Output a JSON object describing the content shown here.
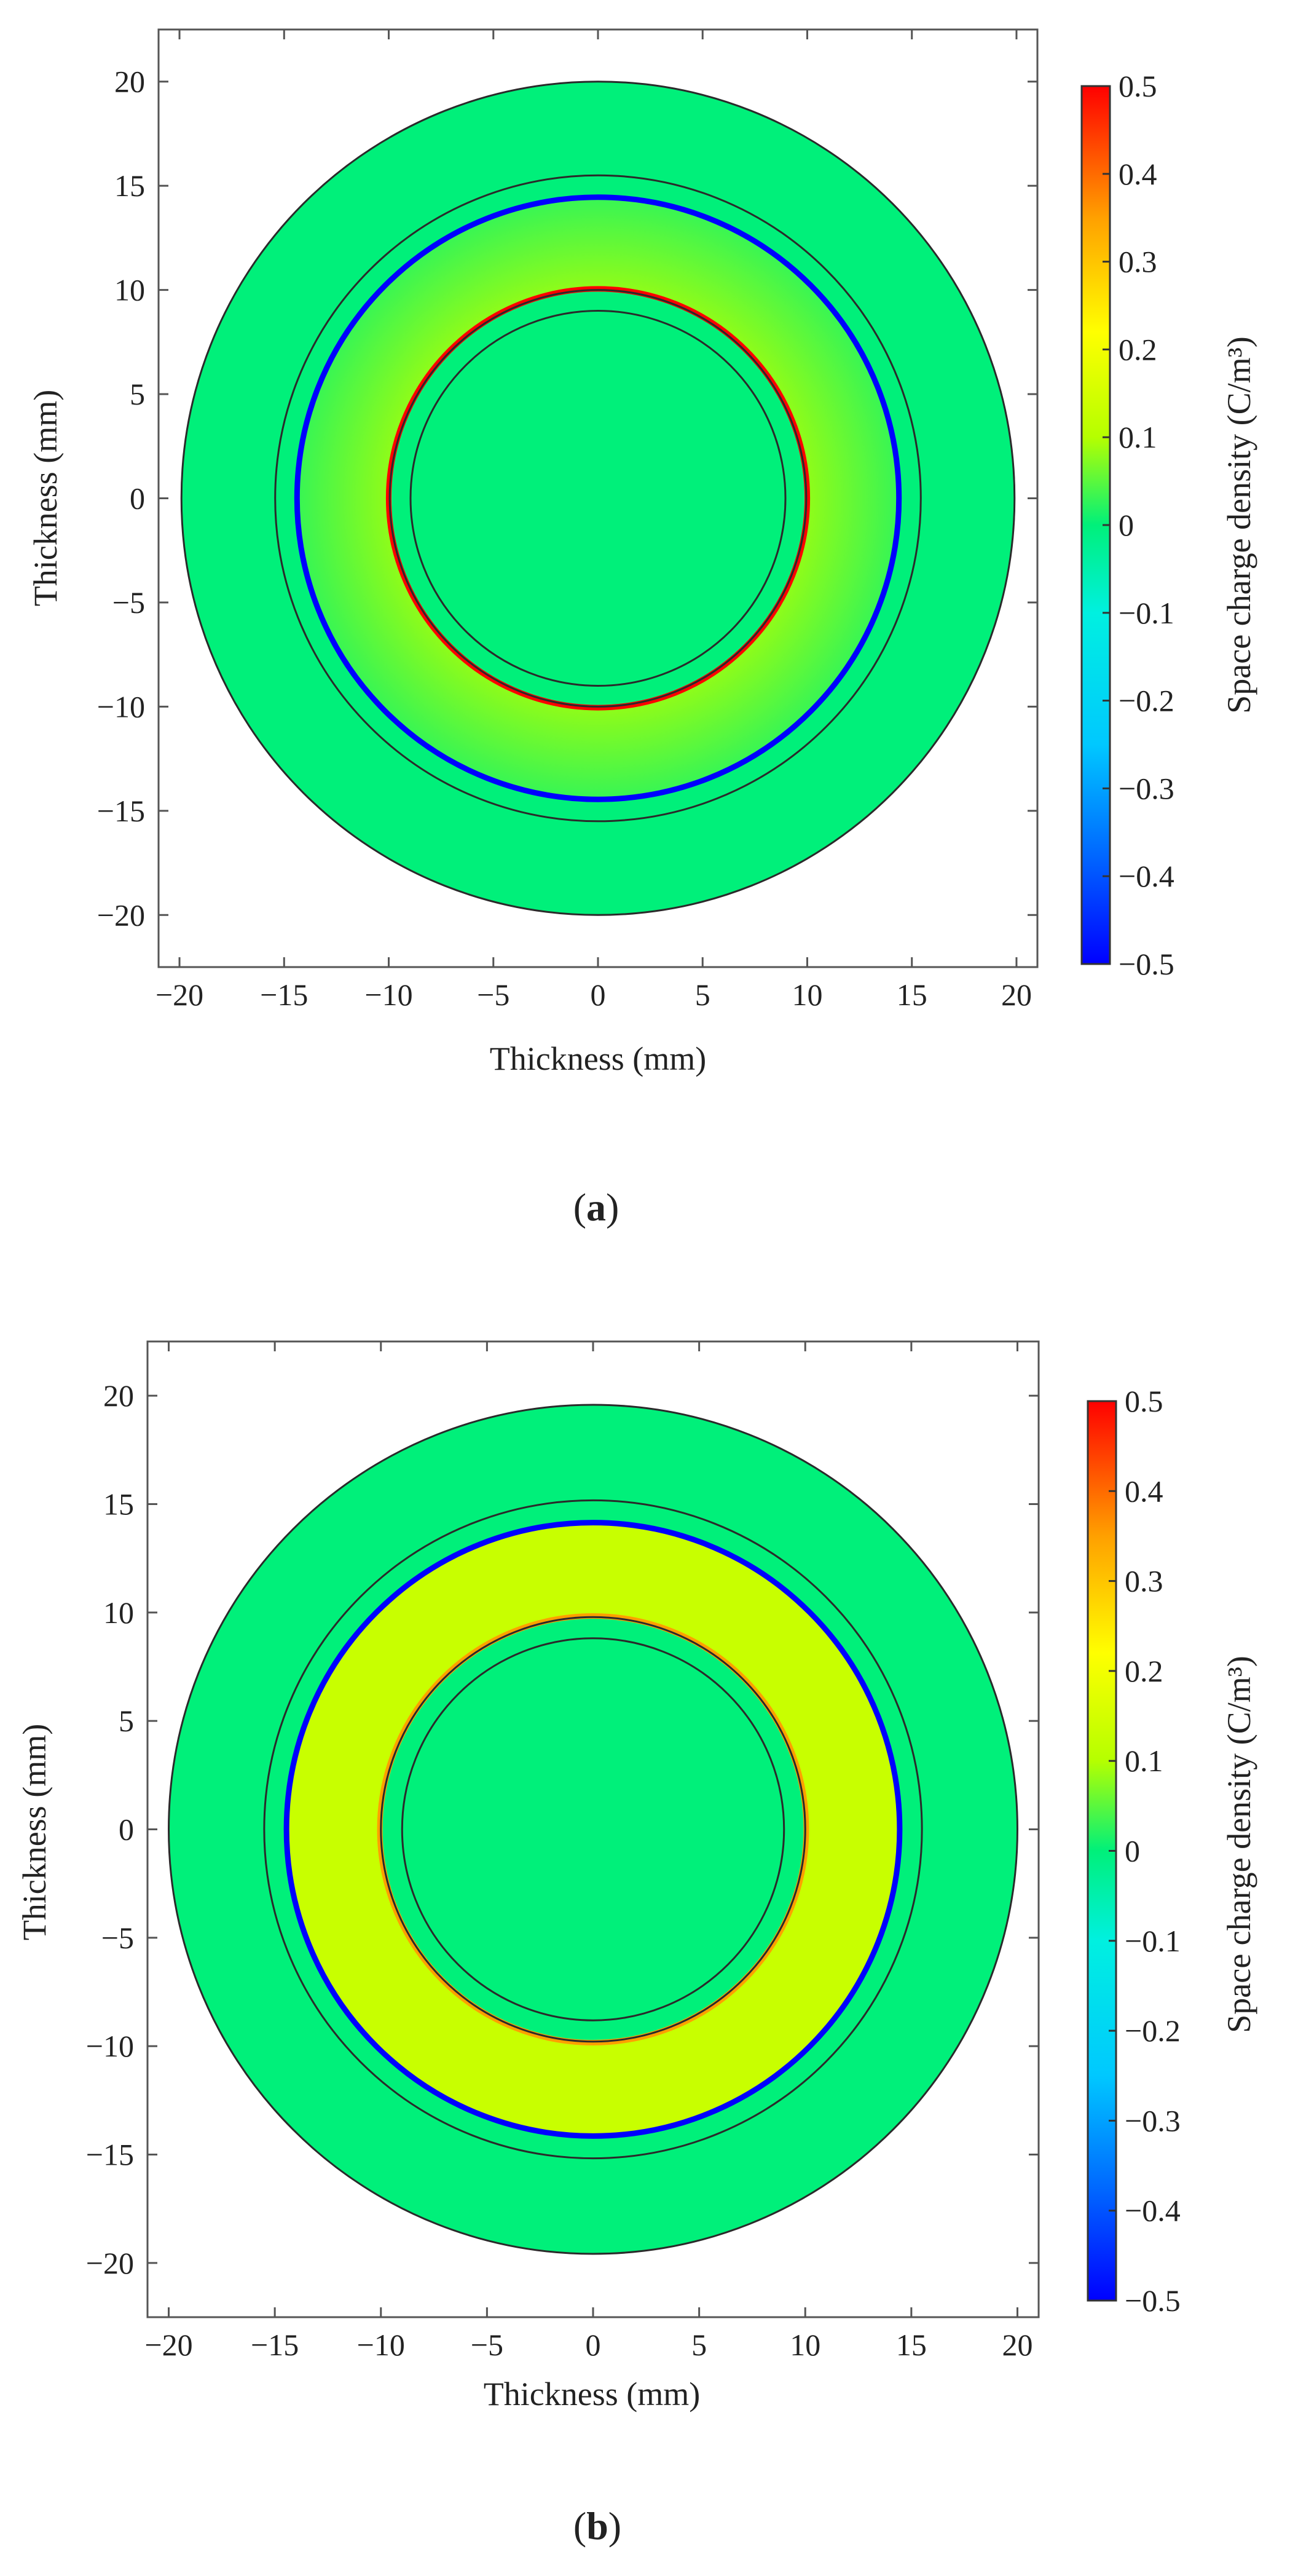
{
  "colors": {
    "field_bg": "#00f07a",
    "cmap": [
      "#0000ff",
      "#00a0ff",
      "#00f0ff",
      "#00f07a",
      "#b5ff00",
      "#ffff00",
      "#ffa000",
      "#ff3000",
      "#ff0000"
    ],
    "frame": "#555555",
    "ring_line": "#2a2a2a"
  },
  "chart_data": [
    {
      "id": "a",
      "type": "heatmap",
      "caption_letter": "a",
      "xlabel": "Thickness (mm)",
      "ylabel": "Thickness (mm)",
      "colorbar_label": "Space charge density (C/m³)",
      "xlim": [
        -21,
        21
      ],
      "ylim": [
        -22.5,
        22.5
      ],
      "xticks": [
        -20,
        -15,
        -10,
        -5,
        0,
        5,
        10,
        15,
        20
      ],
      "xtick_labels": [
        "−20",
        "−15",
        "−10",
        "−5",
        "0",
        "5",
        "10",
        "15",
        "20"
      ],
      "yticks": [
        20,
        15,
        10,
        5,
        0,
        -5,
        -10,
        -15,
        -20
      ],
      "ytick_labels": [
        "20",
        "15",
        "10",
        "5",
        "0",
        "−5",
        "−10",
        "−15",
        "−20"
      ],
      "colorbar_range": [
        -0.5,
        0.5
      ],
      "colorbar_ticks": [
        0.5,
        0.4,
        0.3,
        0.2,
        0.1,
        0,
        -0.1,
        -0.2,
        -0.3,
        -0.4,
        -0.5
      ],
      "colorbar_tick_labels": [
        "0.5",
        "0.4",
        "0.3",
        "0.2",
        "0.1",
        "0",
        "−0.1",
        "−0.2",
        "−0.3",
        "−0.4",
        "−0.5"
      ],
      "regions": [
        {
          "r_outer": 20,
          "r_inner": 15.5,
          "density": 0.0
        },
        {
          "r_outer": 15.5,
          "r_inner": 14.5,
          "density": 0.0
        },
        {
          "r_outer": 14.5,
          "r_inner": 10,
          "density": 0.05,
          "density_inner": 0.08,
          "density_outer": 0.03
        },
        {
          "r_outer": 10,
          "r_inner": 9,
          "density": 0.0
        },
        {
          "r_outer": 9,
          "r_inner": 0,
          "density": 0.0
        }
      ],
      "interface_charges": [
        {
          "r": 14.45,
          "density": -0.5
        },
        {
          "r": 10.05,
          "density": 0.5
        }
      ],
      "boundary_circles": [
        20,
        15.5,
        10,
        9
      ]
    },
    {
      "id": "b",
      "type": "heatmap",
      "caption_letter": "b",
      "xlabel": "Thickness (mm)",
      "ylabel": "Thickness (mm)",
      "colorbar_label": "Space charge density (C/m³)",
      "xlim": [
        -21,
        21
      ],
      "ylim": [
        -22.5,
        22.5
      ],
      "xticks": [
        -20,
        -15,
        -10,
        -5,
        0,
        5,
        10,
        15,
        20
      ],
      "xtick_labels": [
        "−20",
        "−15",
        "−10",
        "−5",
        "0",
        "5",
        "10",
        "15",
        "20"
      ],
      "yticks": [
        20,
        15,
        10,
        5,
        0,
        -5,
        -10,
        -15,
        -20
      ],
      "ytick_labels": [
        "20",
        "15",
        "10",
        "5",
        "0",
        "−5",
        "−10",
        "−15",
        "−20"
      ],
      "colorbar_range": [
        -0.5,
        0.5
      ],
      "colorbar_ticks": [
        0.5,
        0.4,
        0.3,
        0.2,
        0.1,
        0,
        -0.1,
        -0.2,
        -0.3,
        -0.4,
        -0.5
      ],
      "colorbar_tick_labels": [
        "0.5",
        "0.4",
        "0.3",
        "0.2",
        "0.1",
        "0",
        "−0.1",
        "−0.2",
        "−0.3",
        "−0.4",
        "−0.5"
      ],
      "regions": [
        {
          "r_outer": 20,
          "r_inner": 15.5,
          "density": 0.0
        },
        {
          "r_outer": 15.5,
          "r_inner": 14.5,
          "density": 0.0
        },
        {
          "r_outer": 14.5,
          "r_inner": 10,
          "density": 0.13
        },
        {
          "r_outer": 10,
          "r_inner": 9,
          "density": 0.0
        },
        {
          "r_outer": 9,
          "r_inner": 0,
          "density": 0.0
        }
      ],
      "interface_charges": [
        {
          "r": 14.45,
          "density": -0.5
        },
        {
          "r": 10.05,
          "density": 0.35
        }
      ],
      "boundary_circles": [
        20,
        15.5,
        10,
        9
      ]
    }
  ]
}
